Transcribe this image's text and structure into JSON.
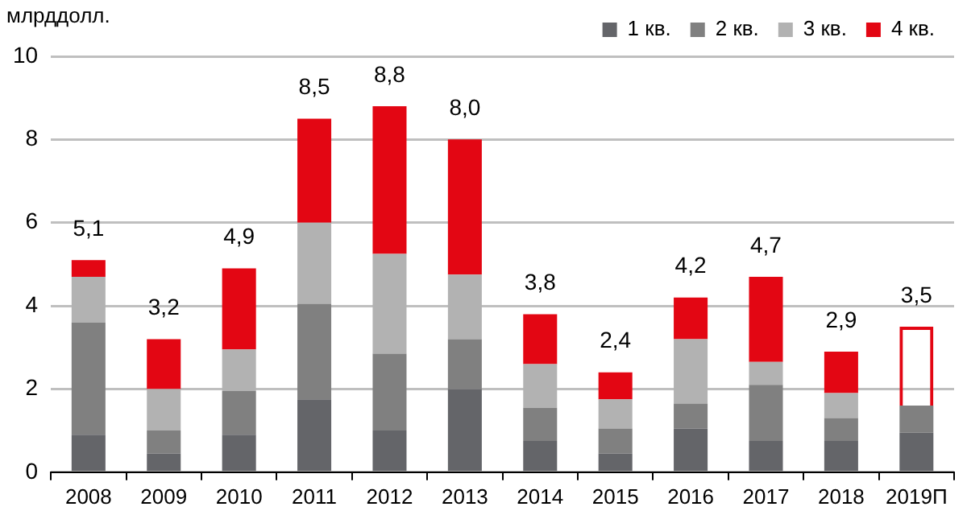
{
  "chart_data": {
    "type": "bar",
    "stacked": true,
    "ylabel": "млрддолл.",
    "categories": [
      "2008",
      "2009",
      "2010",
      "2011",
      "2012",
      "2013",
      "2014",
      "2015",
      "2016",
      "2017",
      "2018",
      "2019П"
    ],
    "series": [
      {
        "name": "1 кв.",
        "color": "#646569",
        "values": [
          0.9,
          0.45,
          0.9,
          1.75,
          1.0,
          2.0,
          0.75,
          0.45,
          1.05,
          0.75,
          0.75,
          0.95
        ]
      },
      {
        "name": "2 кв.",
        "color": "#808080",
        "values": [
          2.7,
          0.55,
          1.05,
          2.3,
          1.85,
          1.2,
          0.8,
          0.6,
          0.6,
          1.35,
          0.55,
          0.65
        ]
      },
      {
        "name": "3 кв.",
        "color": "#b2b2b2",
        "values": [
          1.1,
          1.0,
          1.0,
          1.95,
          2.4,
          1.55,
          1.05,
          0.7,
          1.55,
          0.55,
          0.6,
          null
        ]
      },
      {
        "name": "4 кв.",
        "color": "#e30613",
        "colors": [
          "#e30613",
          "#e30613",
          "#e30613",
          "#e30613",
          "#e30613",
          "#e30613",
          "#e30613",
          "#e30613",
          "#e30613",
          "#e30613",
          "#e30613",
          null
        ],
        "values": [
          0.4,
          1.2,
          1.95,
          2.5,
          3.55,
          3.25,
          1.2,
          0.65,
          1.0,
          2.05,
          1.0,
          1.9
        ]
      }
    ],
    "totals": [
      "5,1",
      "3,2",
      "4,9",
      "8,5",
      "8,8",
      "8,0",
      "3,8",
      "2,4",
      "4,2",
      "4,7",
      "2,9",
      "3,5"
    ],
    "ylim": [
      0,
      10
    ],
    "yticks": [
      0,
      2,
      4,
      6,
      8,
      10
    ],
    "grid": "y",
    "legend": "top right"
  }
}
